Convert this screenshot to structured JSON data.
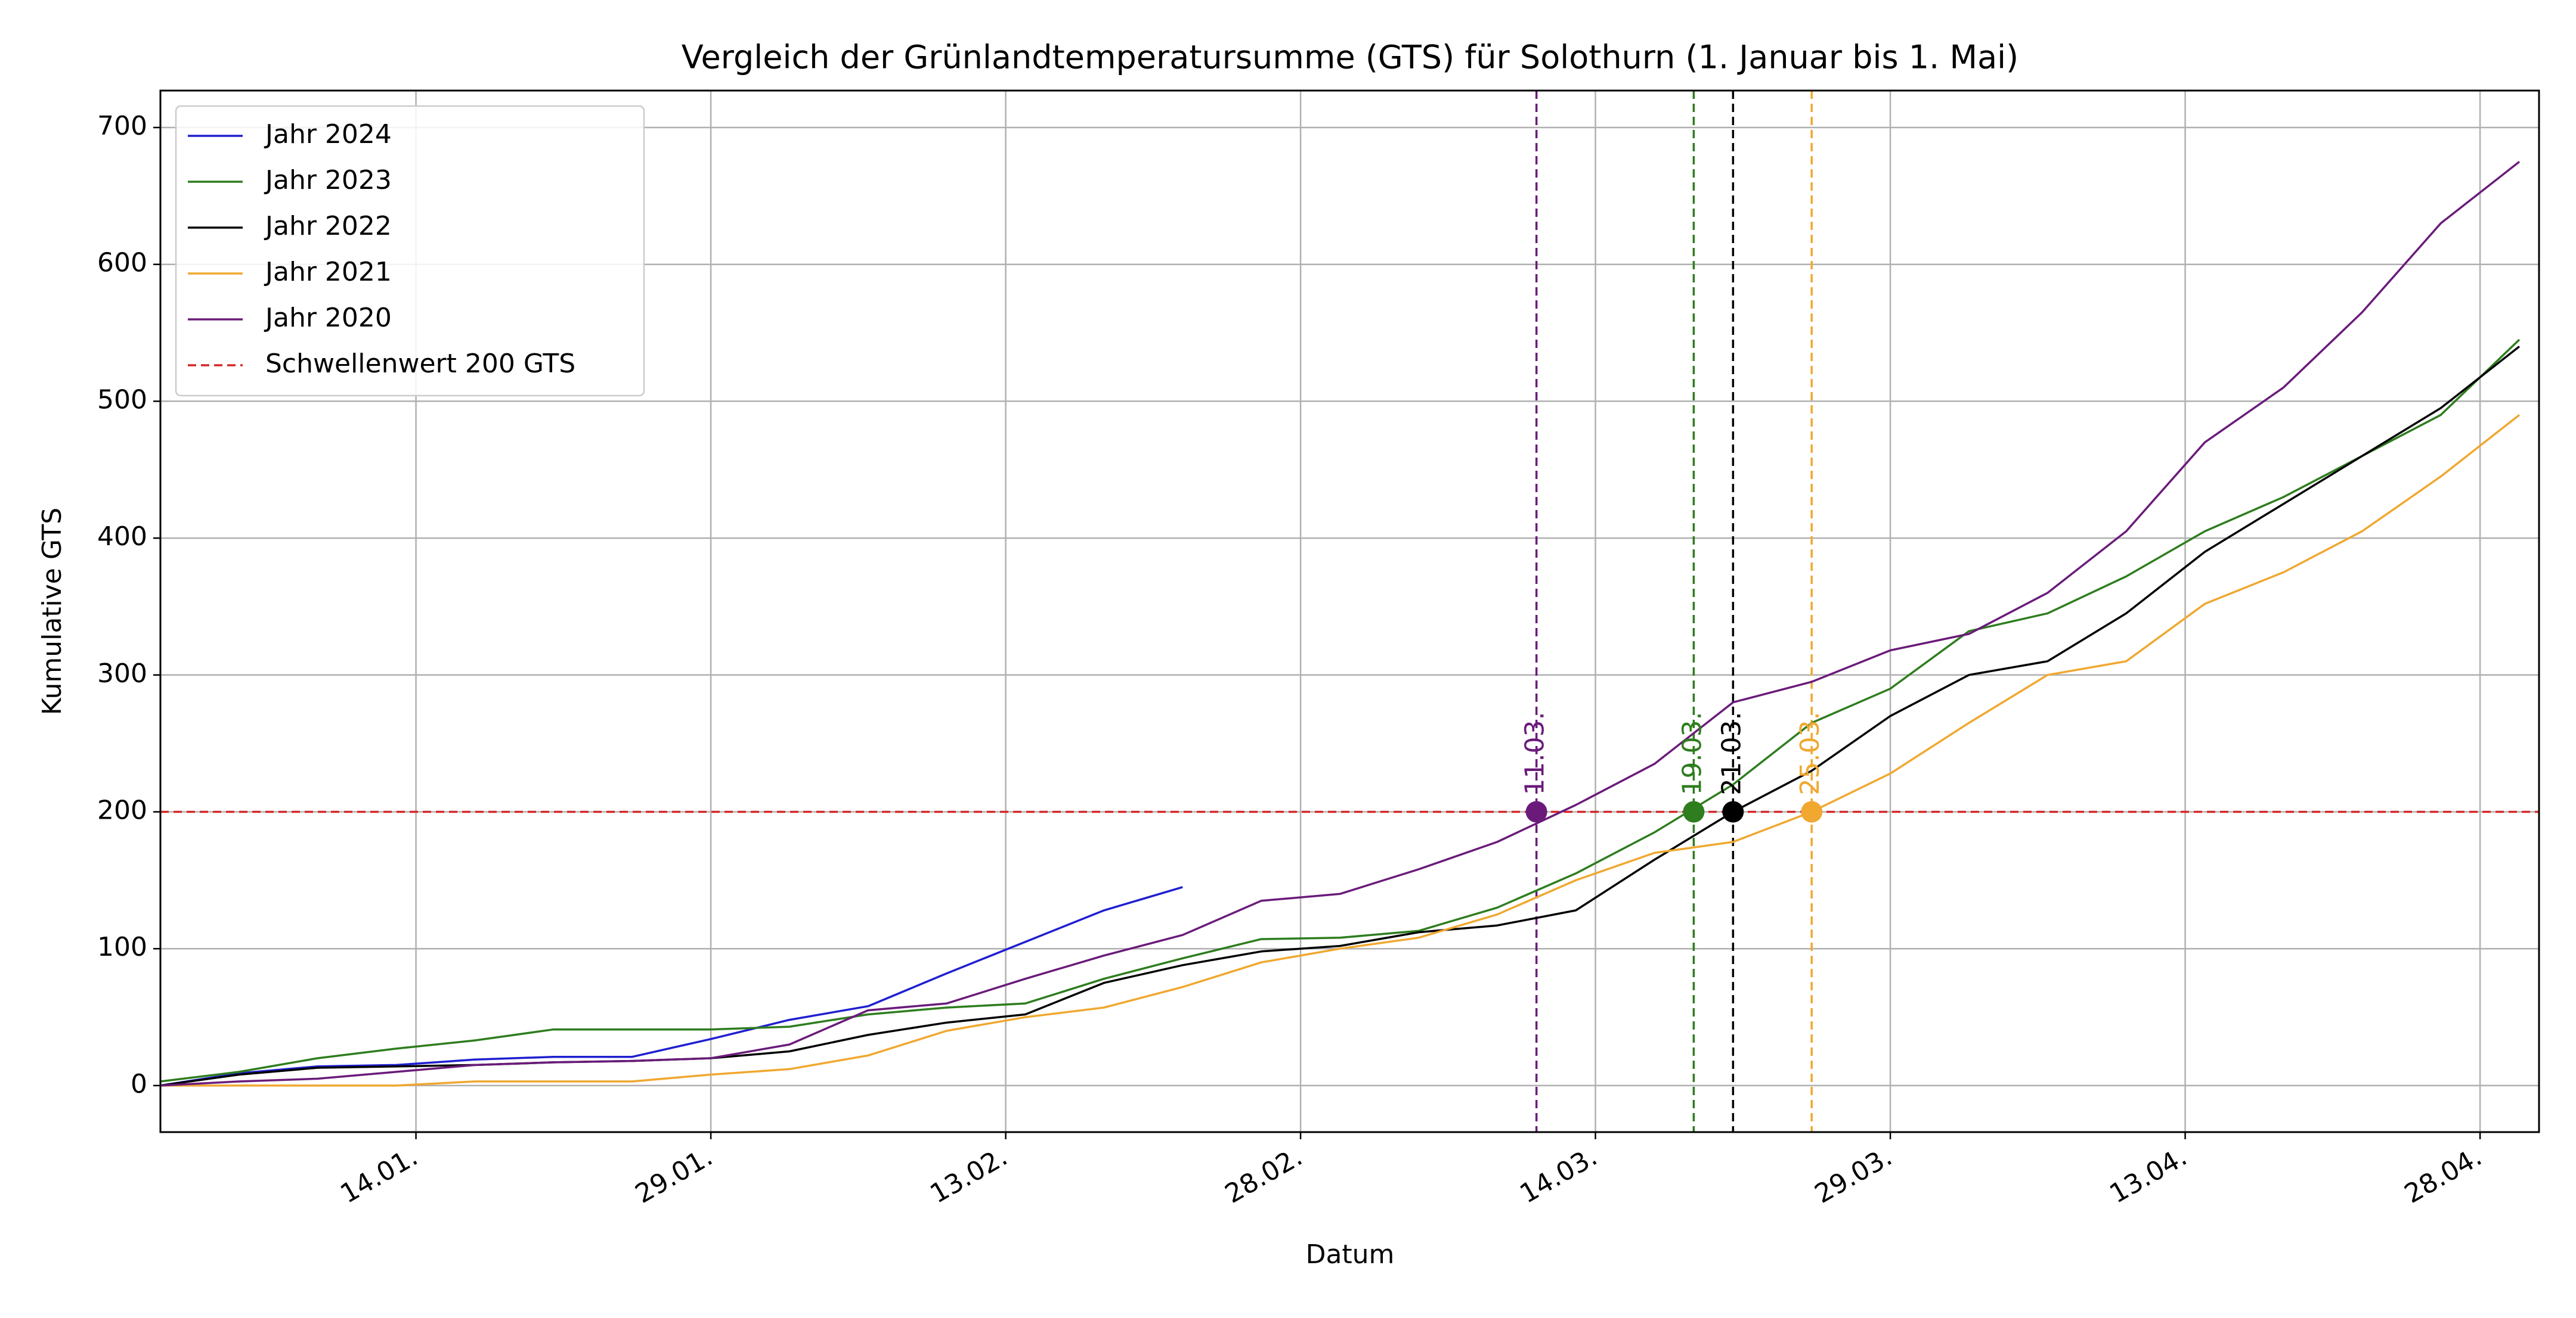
{
  "chart_data": {
    "type": "line",
    "title": "Vergleich der Grünlandtemperatursumme (GTS) für Solothurn (1. Januar bis 1. Mai)",
    "x_label": "Datum",
    "y_label": "Kumulative GTS",
    "x": [
      0,
      4,
      8,
      12,
      16,
      20,
      24,
      28,
      32,
      36,
      40,
      44,
      48,
      52,
      56,
      60,
      64,
      68,
      72,
      76,
      80,
      84,
      88,
      92,
      96,
      100,
      104,
      108,
      112,
      116,
      120
    ],
    "series": [
      {
        "name": "Jahr 2024",
        "color": "#1f1fd0",
        "values": [
          0,
          9,
          14,
          15,
          19,
          21,
          21,
          34,
          48,
          58,
          82,
          105,
          128,
          145,
          null,
          null,
          null,
          null,
          null,
          null,
          null,
          null,
          null,
          null,
          null,
          null,
          null,
          null,
          null,
          null,
          null
        ]
      },
      {
        "name": "Jahr 2023",
        "color": "#2e7d1e",
        "values": [
          3,
          10,
          20,
          27,
          33,
          41,
          41,
          41,
          43,
          52,
          57,
          60,
          78,
          93,
          107,
          108,
          113,
          130,
          155,
          185,
          220,
          265,
          290,
          332,
          345,
          372,
          405,
          430,
          460,
          490,
          545
        ]
      },
      {
        "name": "Jahr 2022",
        "color": "#000000",
        "values": [
          0,
          8,
          13,
          14,
          15,
          17,
          18,
          20,
          25,
          37,
          46,
          52,
          75,
          88,
          98,
          102,
          112,
          117,
          128,
          165,
          200,
          230,
          270,
          300,
          310,
          345,
          390,
          425,
          460,
          495,
          540
        ]
      },
      {
        "name": "Jahr 2021",
        "color": "#f0a830",
        "values": [
          0,
          0,
          0,
          0,
          3,
          3,
          3,
          8,
          12,
          22,
          40,
          50,
          57,
          72,
          90,
          100,
          108,
          125,
          150,
          170,
          178,
          200,
          228,
          265,
          300,
          310,
          352,
          375,
          405,
          445,
          490
        ]
      },
      {
        "name": "Jahr 2020",
        "color": "#6a1b7a",
        "values": [
          0,
          3,
          5,
          10,
          15,
          17,
          18,
          20,
          30,
          55,
          60,
          78,
          95,
          110,
          135,
          140,
          158,
          178,
          205,
          235,
          280,
          295,
          318,
          330,
          360,
          405,
          470,
          510,
          565,
          630,
          675
        ]
      }
    ],
    "threshold": {
      "name": "Schwellenwert 200 GTS",
      "value": 200,
      "color": "#d62728"
    },
    "markers": [
      {
        "label": "11.03.",
        "x": 70,
        "y": 200,
        "color": "#6a1b7a"
      },
      {
        "label": "19.03.",
        "x": 78,
        "y": 200,
        "color": "#2e7d1e"
      },
      {
        "label": "21.03.",
        "x": 80,
        "y": 200,
        "color": "#000000"
      },
      {
        "label": "25.03.",
        "x": 84,
        "y": 200,
        "color": "#f0a830"
      }
    ],
    "xlim": [
      0,
      121
    ],
    "ylim": [
      -34,
      727
    ],
    "xticks": [
      {
        "value": 13,
        "label": "14.01."
      },
      {
        "value": 28,
        "label": "29.01."
      },
      {
        "value": 43,
        "label": "13.02."
      },
      {
        "value": 58,
        "label": "28.02."
      },
      {
        "value": 73,
        "label": "14.03."
      },
      {
        "value": 88,
        "label": "29.03."
      },
      {
        "value": 103,
        "label": "13.04."
      },
      {
        "value": 118,
        "label": "28.04."
      }
    ],
    "yticks": [
      0,
      100,
      200,
      300,
      400,
      500,
      600,
      700
    ],
    "grid": true,
    "legend": "upper left"
  }
}
